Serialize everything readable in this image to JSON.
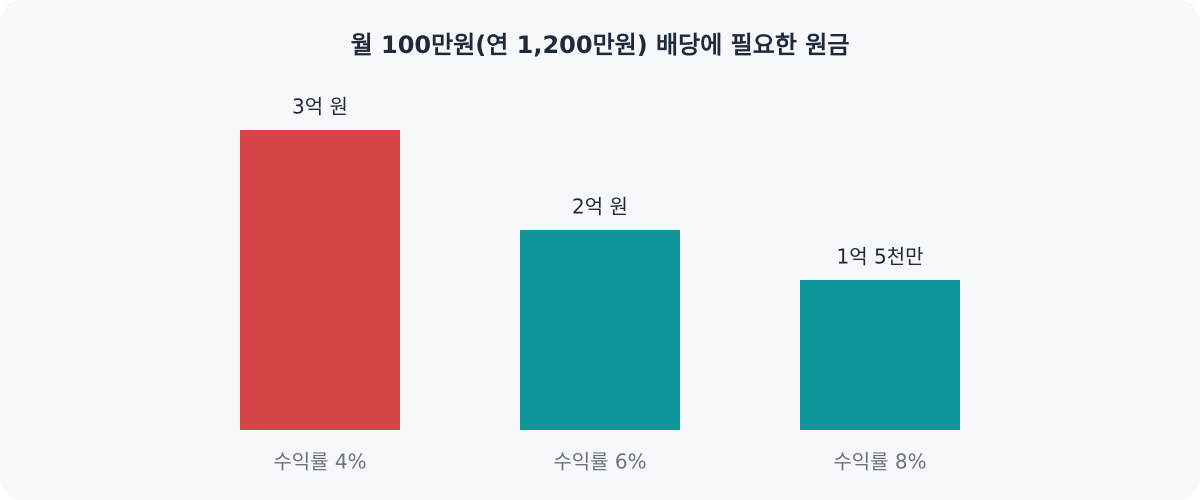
{
  "chart_data": {
    "type": "bar",
    "title": "월 100만원(연 1,200만원) 배당에 필요한 원금",
    "categories": [
      "수익률 4%",
      "수익률 6%",
      "수익률 8%"
    ],
    "values": [
      300000000,
      200000000,
      150000000
    ],
    "value_labels": [
      "3억 원",
      "2억 원",
      "1억 5천만"
    ],
    "colors": [
      "#d64545",
      "#10969a",
      "#10969a"
    ]
  }
}
